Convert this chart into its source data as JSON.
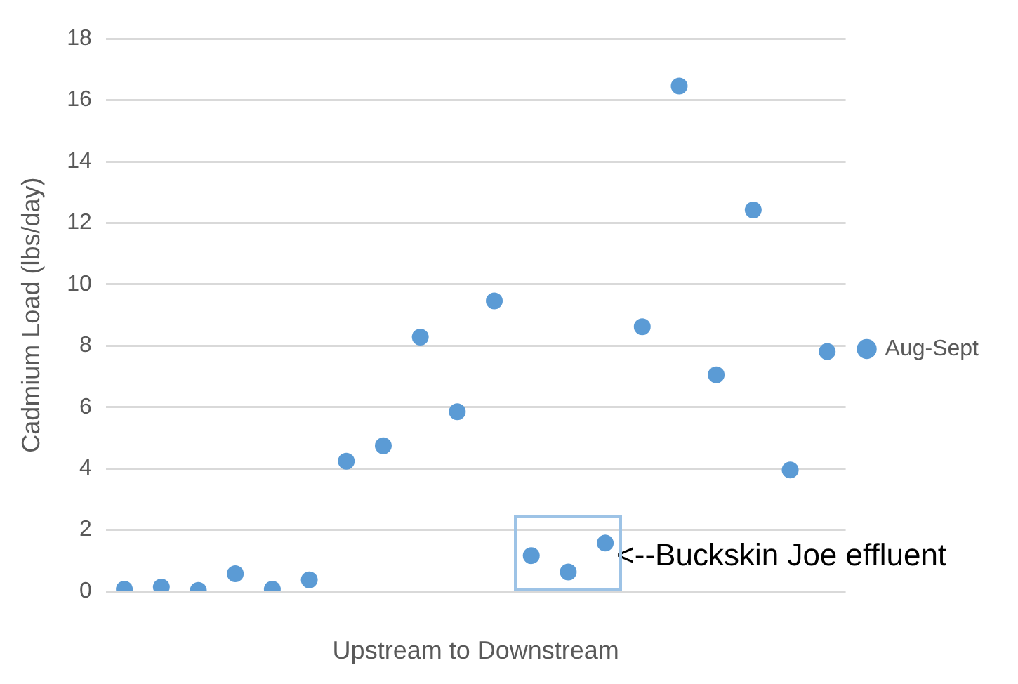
{
  "chart_data": {
    "type": "scatter",
    "ylabel": "Cadmium Load (lbs/day)",
    "xlabel": "Upstream to Downstream",
    "categories": [
      null,
      null,
      null,
      null,
      null,
      null,
      null,
      null,
      null,
      null,
      null,
      null,
      null,
      null,
      null,
      null,
      null,
      null,
      null,
      null
    ],
    "series": [
      {
        "name": "Aug-Sept",
        "color": "#5b9bd5",
        "values": [
          0.07,
          0.14,
          0.03,
          0.57,
          0.07,
          0.37,
          4.24,
          4.74,
          8.28,
          5.85,
          9.46,
          1.16,
          0.63,
          1.57,
          8.62,
          16.46,
          7.05,
          12.42,
          3.95,
          7.81
        ]
      }
    ],
    "ylim": [
      0,
      18
    ],
    "yticks": [
      0,
      2,
      4,
      6,
      8,
      10,
      12,
      14,
      16,
      18
    ],
    "grid": "y",
    "legend": "right",
    "marker": "circle",
    "annotations": [
      "<--Buckskin Joe effluent"
    ]
  }
}
